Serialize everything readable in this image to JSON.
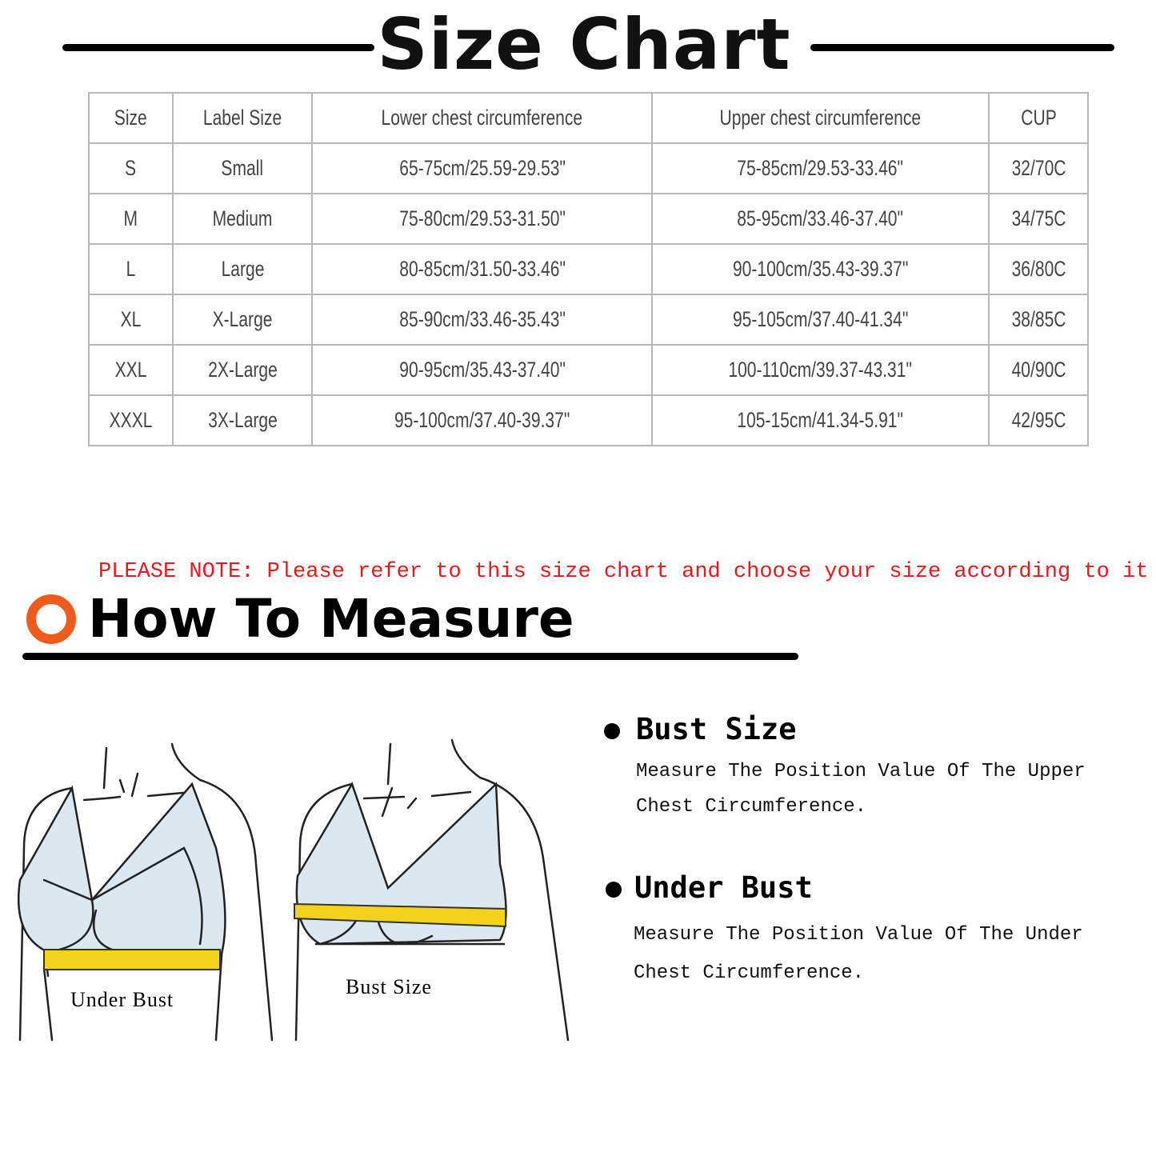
{
  "title": "Size Chart",
  "table": {
    "headers": [
      "Size",
      "Label Size",
      "Lower chest circumference",
      "Upper chest circumference",
      "CUP"
    ],
    "rows": [
      [
        "S",
        "Small",
        "65-75cm/25.59-29.53\"",
        "75-85cm/29.53-33.46\"",
        "32/70C"
      ],
      [
        "M",
        "Medium",
        "75-80cm/29.53-31.50\"",
        "85-95cm/33.46-37.40\"",
        "34/75C"
      ],
      [
        "L",
        "Large",
        "80-85cm/31.50-33.46\"",
        "90-100cm/35.43-39.37\"",
        "36/80C"
      ],
      [
        "XL",
        "X-Large",
        "85-90cm/33.46-35.43\"",
        "95-105cm/37.40-41.34\"",
        "38/85C"
      ],
      [
        "XXL",
        "2X-Large",
        "90-95cm/35.43-37.40\"",
        "100-110cm/39.37-43.31\"",
        "40/90C"
      ],
      [
        "XXXL",
        "3X-Large",
        "95-100cm/37.40-39.37\"",
        "105-15cm/41.34-5.91\"",
        "42/95C"
      ]
    ]
  },
  "note": "PLEASE NOTE: Please refer to this size chart and choose your size according to it",
  "measure": {
    "title": "How To Measure",
    "illustrations": {
      "left_label": "Under Bust",
      "right_label": "Bust Size"
    },
    "items": [
      {
        "heading": "Bust Size",
        "description": "Measure The Position Value Of The Upper Chest Circumference."
      },
      {
        "heading": "Under Bust",
        "description": "Measure The Position Value Of The Under Chest Circumference."
      }
    ]
  },
  "colors": {
    "note": "#e8191c",
    "accent_ring": "#f05a1c",
    "tape": "#f2d21a",
    "bra": "#dbe8f2",
    "table_border": "#b8b8b8"
  }
}
